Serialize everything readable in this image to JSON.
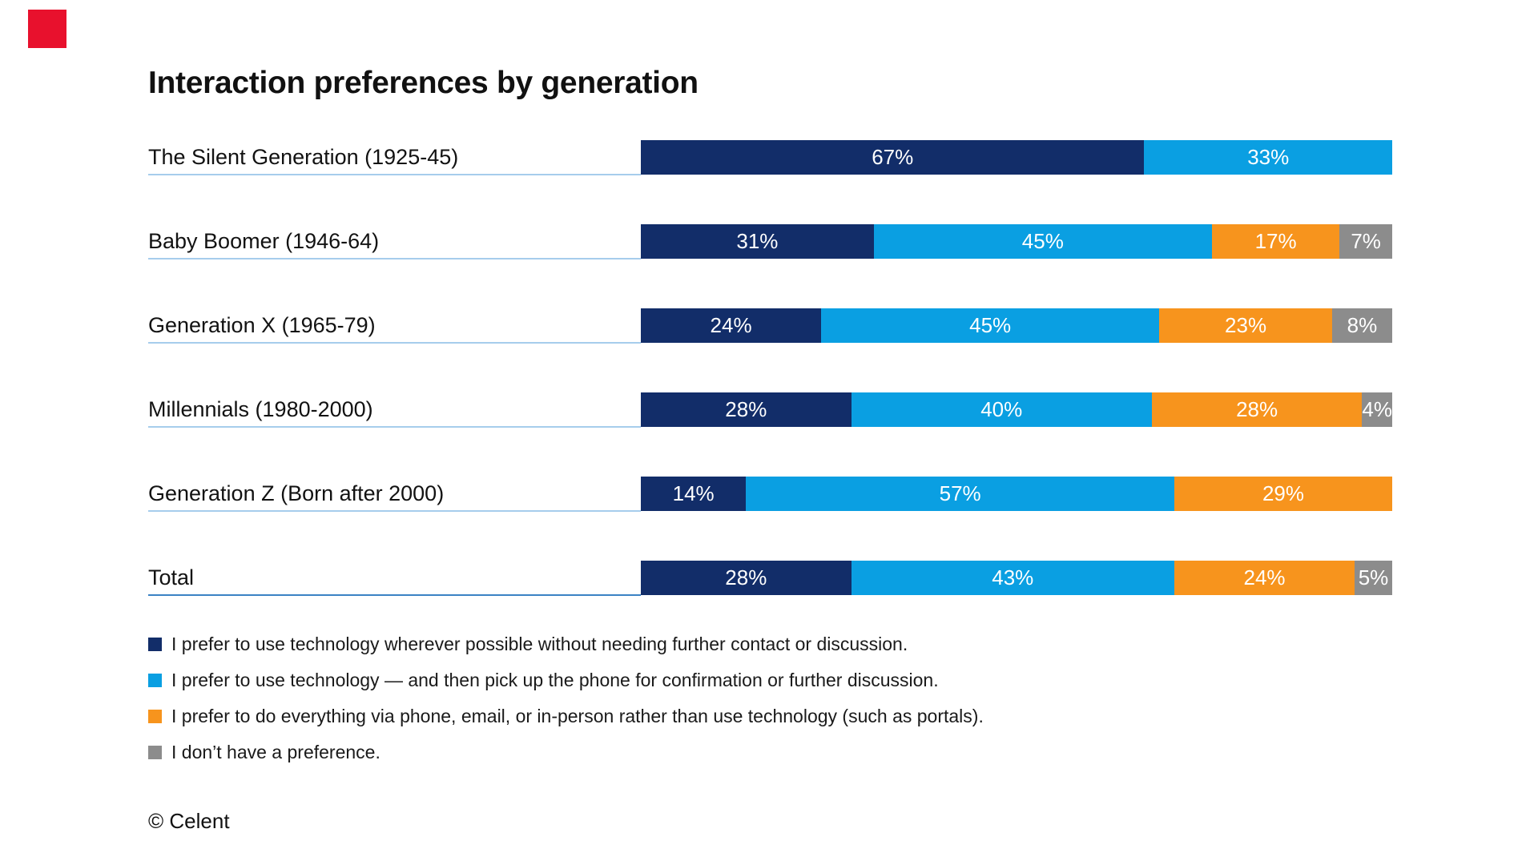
{
  "title": "Interaction preferences by generation",
  "footer": "© Celent",
  "logo": {
    "name": "celent-red-square",
    "color": "#E8112D"
  },
  "legend": [
    {
      "label": "I prefer to use technology wherever possible without needing further contact or discussion.",
      "color": "#122D69"
    },
    {
      "label": "I prefer to use technology — and then pick up the phone for confirmation or further discussion.",
      "color": "#0A9FE2"
    },
    {
      "label": "I prefer to do everything via phone, email, or in-person rather than use technology (such as portals).",
      "color": "#F7941D"
    },
    {
      "label": "I don’t have a preference.",
      "color": "#8C8C8C"
    }
  ],
  "chart_data": {
    "type": "bar",
    "subtype": "horizontal-stacked",
    "xlim": [
      0,
      100
    ],
    "unit": "%",
    "grid": false,
    "legend_position": "bottom",
    "categories": [
      "The Silent Generation (1925-45)",
      "Baby Boomer (1946-64)",
      "Generation X (1965-79)",
      "Millennials (1980-2000)",
      "Generation Z (Born after 2000)",
      "Total"
    ],
    "series": [
      {
        "name": "I prefer to use technology wherever possible without needing further contact or discussion.",
        "color": "#122D69",
        "values": [
          67,
          31,
          24,
          28,
          14,
          28
        ]
      },
      {
        "name": "I prefer to use technology — and then pick up the phone for confirmation or further discussion.",
        "color": "#0A9FE2",
        "values": [
          33,
          45,
          45,
          40,
          57,
          43
        ]
      },
      {
        "name": "I prefer to do everything via phone, email, or in-person rather than use technology (such as portals).",
        "color": "#F7941D",
        "values": [
          0,
          17,
          23,
          28,
          29,
          24
        ]
      },
      {
        "name": "I don’t have a preference.",
        "color": "#8C8C8C",
        "values": [
          0,
          7,
          8,
          4,
          0,
          5
        ]
      }
    ],
    "divider_color": "#A6CDEC",
    "divider_color_total": "#3B82C4",
    "row_top_start": 175,
    "row_pitch": 105
  }
}
